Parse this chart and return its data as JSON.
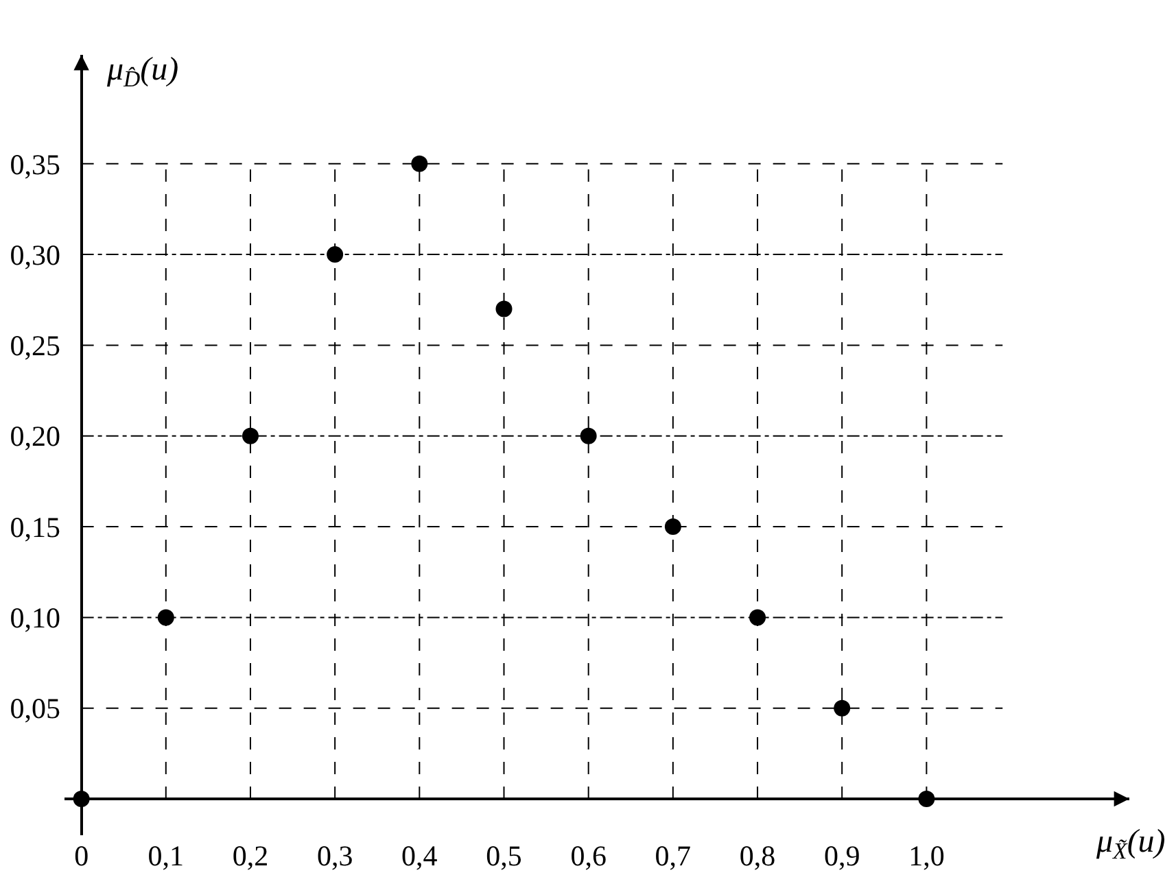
{
  "chart_data": {
    "type": "scatter",
    "xlabel": "μ$_{X̃}$(u)",
    "ylabel": "μ$_{D̂}$(u)",
    "x": [
      0,
      0.1,
      0.2,
      0.3,
      0.4,
      0.5,
      0.6,
      0.7,
      0.8,
      0.9,
      1.0
    ],
    "values": [
      0,
      0.1,
      0.2,
      0.3,
      0.35,
      0.27,
      0.2,
      0.15,
      0.1,
      0.05,
      0
    ],
    "color": "#000000",
    "marker": "circle",
    "xlim": [
      -0.02,
      1.24
    ],
    "ylim": [
      -0.02,
      0.41
    ],
    "xticks": [
      0,
      {
        "value": 0.1,
        "label": "0,1"
      },
      {
        "value": 0.2,
        "label": "0,2"
      },
      {
        "value": 0.3,
        "label": "0,3"
      },
      {
        "value": 0.4,
        "label": "0,4"
      },
      {
        "value": 0.5,
        "label": "0,5"
      },
      {
        "value": 0.6,
        "label": "0,6"
      },
      {
        "value": 0.7,
        "label": "0,7"
      },
      {
        "value": 0.8,
        "label": "0,8"
      },
      {
        "value": 0.9,
        "label": "0,9"
      },
      {
        "value": 1.0,
        "label": "1,0"
      }
    ],
    "yticks": [
      {
        "value": 0.05,
        "label": "0,05"
      },
      {
        "value": 0.1,
        "label": "0,10"
      },
      {
        "value": 0.15,
        "label": "0,15"
      },
      {
        "value": 0.2,
        "label": "0,20"
      },
      {
        "value": 0.25,
        "label": "0,25"
      },
      {
        "value": 0.3,
        "label": "0,30"
      },
      {
        "value": 0.35,
        "label": "0,35"
      }
    ],
    "grid": true
  }
}
